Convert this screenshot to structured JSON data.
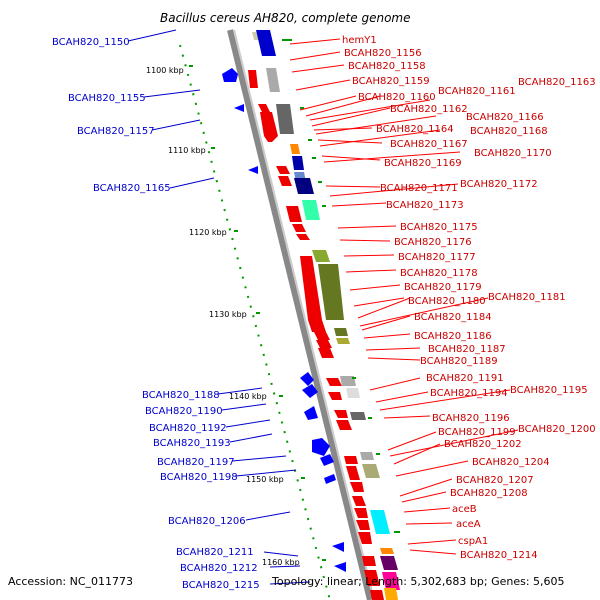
{
  "title": "Bacillus cereus AH820, complete genome",
  "accession": "Accession: NC_011773",
  "topology": "Topology: linear; Length: 5,302,683 bp; Genes: 5,605",
  "ticks": [
    "1100 kbp",
    "1110 kbp",
    "1120 kbp",
    "1130 kbp",
    "1140 kbp",
    "1150 kbp",
    "1160 kbp"
  ],
  "right_labels": [
    "hemY1",
    "BCAH820_1156",
    "BCAH820_1158",
    "BCAH820_1159",
    "BCAH820_1160",
    "BCAH820_1161",
    "BCAH820_1163",
    "BCAH820_1162",
    "BCAH820_1164",
    "BCAH820_1166",
    "BCAH820_1167",
    "BCAH820_1168",
    "BCAH820_1169",
    "BCAH820_1170",
    "BCAH820_1171",
    "BCAH820_1172",
    "BCAH820_1173",
    "BCAH820_1175",
    "BCAH820_1176",
    "BCAH820_1177",
    "BCAH820_1178",
    "BCAH820_1179",
    "BCAH820_1180",
    "BCAH820_1181",
    "BCAH820_1184",
    "BCAH820_1186",
    "BCAH820_1187",
    "BCAH820_1189",
    "BCAH820_1191",
    "BCAH820_1194",
    "BCAH820_1195",
    "BCAH820_1196",
    "BCAH820_1199",
    "BCAH820_1200",
    "BCAH820_1202",
    "BCAH820_1204",
    "BCAH820_1207",
    "BCAH820_1208",
    "aceB",
    "aceA",
    "cspA1",
    "BCAH820_1214"
  ],
  "left_labels": [
    "BCAH820_1150",
    "BCAH820_1155",
    "BCAH820_1157",
    "BCAH820_1165",
    "BCAH820_1188",
    "BCAH820_1190",
    "BCAH820_1192",
    "BCAH820_1193",
    "BCAH820_1197",
    "BCAH820_1198",
    "BCAH820_1206",
    "BCAH820_1211",
    "BCAH820_1212",
    "BCAH820_1215"
  ]
}
